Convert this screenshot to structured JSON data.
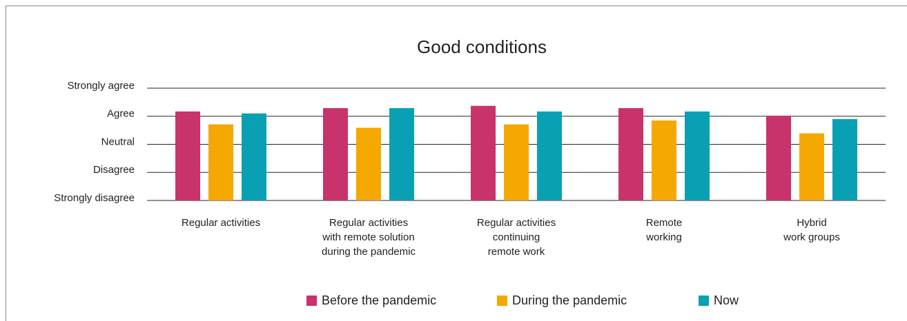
{
  "chart_data": {
    "type": "bar",
    "title": "Good conditions",
    "categories": [
      "Regular activities",
      "Regular activities\nwith remote solution\nduring the pandemic",
      "Regular activities\ncontinuing\nremote work",
      "Remote\nworking",
      "Hybrid\nwork groups"
    ],
    "series": [
      {
        "name": "Before the pandemic",
        "color": "#c8336b",
        "values": [
          4.17,
          4.29,
          4.37,
          4.29,
          4.02
        ]
      },
      {
        "name": "During the pandemic",
        "color": "#f5a800",
        "values": [
          3.71,
          3.59,
          3.71,
          3.85,
          3.39
        ]
      },
      {
        "name": "Now",
        "color": "#0aa0b4",
        "values": [
          4.1,
          4.29,
          4.17,
          4.17,
          3.9
        ]
      }
    ],
    "ylim": [
      1,
      5
    ],
    "yticks": [
      {
        "value": 1,
        "label": "Strongly disagree"
      },
      {
        "value": 2,
        "label": "Disagree"
      },
      {
        "value": 3,
        "label": "Neutral"
      },
      {
        "value": 4,
        "label": "Agree"
      },
      {
        "value": 5,
        "label": "Strongly agree"
      }
    ],
    "grid": true,
    "legend": "bottom"
  }
}
